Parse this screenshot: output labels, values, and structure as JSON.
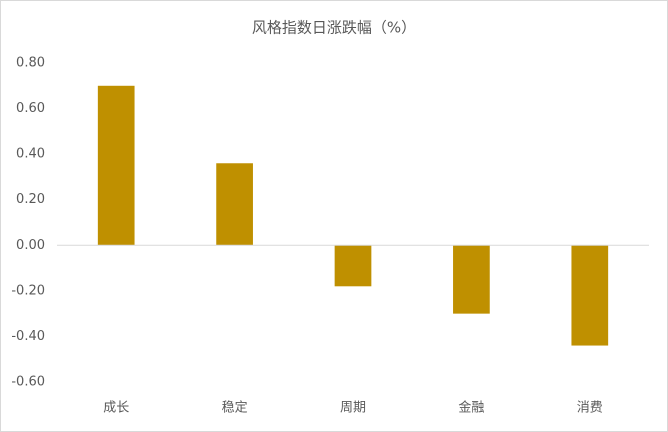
{
  "chart_data": {
    "type": "bar",
    "title": "风格指数日涨跌幅（%）",
    "categories": [
      "成长",
      "稳定",
      "周期",
      "金融",
      "消费"
    ],
    "values": [
      0.7,
      0.36,
      -0.18,
      -0.3,
      -0.44
    ],
    "color": "#bf9000",
    "ylim": [
      -0.6,
      0.8
    ],
    "yticks": [
      {
        "value": -0.6,
        "label": "-0.60"
      },
      {
        "value": -0.4,
        "label": "-0.40"
      },
      {
        "value": -0.2,
        "label": "-0.20"
      },
      {
        "value": 0,
        "label": "0.00"
      },
      {
        "value": 0.2,
        "label": "0.20"
      },
      {
        "value": 0.4,
        "label": "0.40"
      },
      {
        "value": 0.6,
        "label": "0.60"
      },
      {
        "value": 0.8,
        "label": "0.80"
      }
    ],
    "grid": false
  }
}
